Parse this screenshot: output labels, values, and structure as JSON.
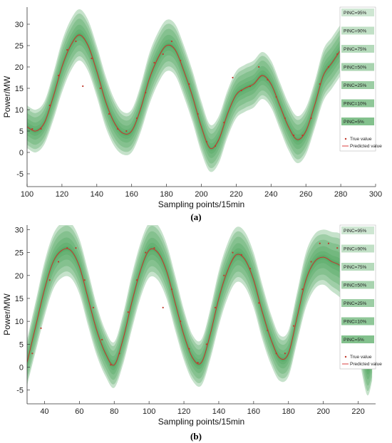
{
  "figure": {
    "colors": {
      "band_fill": "#4ea65c",
      "band_opacity": 0.32,
      "true_value": "#c0392b",
      "predicted": "#d62728",
      "background": "#ffffff"
    },
    "legend_entries": [
      "PINC=95%",
      "PINC=90%",
      "PINC=75%",
      "PINC=50%",
      "PINC=25%",
      "PINC=10%",
      "PINC=5%"
    ],
    "legend_true": "True value",
    "legend_pred": "Predicted value"
  },
  "chart_data": [
    {
      "type": "area",
      "caption": "(a)",
      "xlabel": "Sampling points/15min",
      "ylabel": "Power/MW",
      "xlim": [
        100,
        300
      ],
      "ylim": [
        -8,
        34
      ],
      "xticks": [
        100,
        120,
        140,
        160,
        180,
        200,
        220,
        240,
        260,
        280,
        300
      ],
      "yticks": [
        -5,
        0,
        5,
        10,
        15,
        20,
        25,
        30
      ],
      "grid": false,
      "legend_position": "right",
      "predicted": {
        "name": "Predicted value",
        "x": [
          100,
          105,
          110,
          115,
          120,
          125,
          130,
          135,
          140,
          145,
          150,
          155,
          160,
          165,
          170,
          175,
          180,
          185,
          190,
          195,
          200,
          205,
          210,
          215,
          220,
          225,
          230,
          235,
          240,
          245,
          250,
          255,
          260,
          265,
          270,
          275,
          280,
          285,
          290
        ],
        "y": [
          6,
          5,
          7,
          13,
          20,
          25,
          27.5,
          25,
          19,
          12,
          7,
          4.5,
          5,
          10,
          17,
          22,
          25,
          24,
          19,
          13,
          6,
          1,
          3,
          9,
          13.5,
          15,
          16,
          18,
          16,
          11,
          6,
          3,
          5,
          11,
          18,
          21,
          24,
          27,
          27.5
        ]
      },
      "bands": [
        {
          "name": "PINC=95%",
          "halfwidth": [
            5,
            5,
            5,
            5.5,
            6,
            6,
            6,
            6,
            6,
            6,
            5.5,
            5,
            5,
            5.5,
            6,
            6,
            6,
            6,
            6,
            6,
            6,
            5.5,
            5.5,
            5.5,
            5.5,
            5.5,
            5.5,
            5.5,
            5.5,
            5.5,
            5.5,
            5.5,
            5.5,
            5.5,
            6,
            6,
            6,
            6,
            6
          ]
        },
        {
          "name": "PINC=90%",
          "halfwidth": [
            4.2,
            4.2,
            4.2,
            4.6,
            5,
            5,
            5,
            5,
            5,
            5,
            4.6,
            4.2,
            4.2,
            4.6,
            5,
            5,
            5,
            5,
            5,
            5,
            5,
            4.6,
            4.6,
            4.6,
            4.6,
            4.6,
            4.6,
            4.6,
            4.6,
            4.6,
            4.6,
            4.6,
            4.6,
            4.6,
            5,
            5,
            5,
            5,
            5
          ]
        },
        {
          "name": "PINC=75%",
          "halfwidth": [
            3.2,
            3.2,
            3.2,
            3.5,
            3.8,
            3.8,
            3.8,
            3.8,
            3.8,
            3.8,
            3.5,
            3.2,
            3.2,
            3.5,
            3.8,
            3.8,
            3.8,
            3.8,
            3.8,
            3.8,
            3.8,
            3.5,
            3.5,
            3.5,
            3.5,
            3.5,
            3.5,
            3.5,
            3.5,
            3.5,
            3.5,
            3.5,
            3.5,
            3.5,
            3.8,
            3.8,
            3.8,
            3.8,
            3.8
          ]
        },
        {
          "name": "PINC=50%",
          "halfwidth": [
            2,
            2,
            2,
            2.2,
            2.4,
            2.4,
            2.4,
            2.4,
            2.4,
            2.4,
            2.2,
            2,
            2,
            2.2,
            2.4,
            2.4,
            2.4,
            2.4,
            2.4,
            2.4,
            2.4,
            2.2,
            2.2,
            2.2,
            2.2,
            2.2,
            2.2,
            2.2,
            2.2,
            2.2,
            2.2,
            2.2,
            2.2,
            2.2,
            2.4,
            2.4,
            2.4,
            2.4,
            2.4
          ]
        },
        {
          "name": "PINC=25%",
          "halfwidth": [
            1.1,
            1.1,
            1.1,
            1.2,
            1.3,
            1.3,
            1.3,
            1.3,
            1.3,
            1.3,
            1.2,
            1.1,
            1.1,
            1.2,
            1.3,
            1.3,
            1.3,
            1.3,
            1.3,
            1.3,
            1.3,
            1.2,
            1.2,
            1.2,
            1.2,
            1.2,
            1.2,
            1.2,
            1.2,
            1.2,
            1.2,
            1.2,
            1.2,
            1.2,
            1.3,
            1.3,
            1.3,
            1.3,
            1.3
          ]
        },
        {
          "name": "PINC=10%",
          "halfwidth": [
            0.5,
            0.5,
            0.5,
            0.5,
            0.55,
            0.55,
            0.55,
            0.55,
            0.55,
            0.55,
            0.5,
            0.5,
            0.5,
            0.5,
            0.55,
            0.55,
            0.55,
            0.55,
            0.55,
            0.55,
            0.55,
            0.5,
            0.5,
            0.5,
            0.5,
            0.5,
            0.5,
            0.5,
            0.5,
            0.5,
            0.5,
            0.5,
            0.5,
            0.5,
            0.55,
            0.55,
            0.55,
            0.55,
            0.55
          ]
        },
        {
          "name": "PINC=5%",
          "halfwidth": [
            0.25,
            0.25,
            0.25,
            0.25,
            0.28,
            0.28,
            0.28,
            0.28,
            0.28,
            0.28,
            0.25,
            0.25,
            0.25,
            0.25,
            0.28,
            0.28,
            0.28,
            0.28,
            0.28,
            0.28,
            0.28,
            0.25,
            0.25,
            0.25,
            0.25,
            0.25,
            0.25,
            0.25,
            0.25,
            0.25,
            0.25,
            0.25,
            0.25,
            0.25,
            0.28,
            0.28,
            0.28,
            0.28,
            0.28
          ]
        }
      ],
      "true_value": {
        "name": "True value",
        "x": [
          103,
          108,
          113,
          118,
          123,
          128,
          132,
          137,
          142,
          147,
          152,
          157,
          163,
          168,
          173,
          178,
          183,
          188,
          193,
          198,
          203,
          208,
          213,
          218,
          223,
          228,
          233,
          238,
          243,
          248,
          253,
          258,
          263,
          268,
          273,
          278,
          283
        ],
        "y": [
          5.5,
          5.5,
          11,
          18,
          24,
          26,
          15.5,
          22,
          15,
          9,
          5.5,
          5,
          8,
          14,
          21,
          23,
          26,
          21.5,
          16,
          9,
          2.5,
          1.5,
          7,
          17.5,
          14.5,
          15.5,
          20,
          17,
          13,
          8,
          4,
          4,
          8,
          16,
          20,
          23,
          26
        ]
      }
    },
    {
      "type": "area",
      "caption": "(b)",
      "xlabel": "Sampling points/15min",
      "ylabel": "Power/MW",
      "xlim": [
        30,
        230
      ],
      "ylim": [
        -8,
        31
      ],
      "xticks": [
        40,
        60,
        80,
        100,
        120,
        140,
        160,
        180,
        200,
        220
      ],
      "yticks": [
        -5,
        0,
        5,
        10,
        15,
        20,
        25,
        30
      ],
      "grid": false,
      "legend_position": "right",
      "predicted": {
        "name": "Predicted value",
        "x": [
          30,
          35,
          40,
          45,
          50,
          55,
          60,
          65,
          70,
          75,
          80,
          85,
          90,
          95,
          100,
          105,
          110,
          115,
          120,
          125,
          130,
          135,
          140,
          145,
          150,
          155,
          160,
          165,
          170,
          175,
          180,
          185,
          190,
          195,
          200,
          205,
          210,
          215,
          220,
          225,
          228
        ],
        "y": [
          1,
          9,
          17,
          23,
          25.5,
          25.5,
          22,
          15,
          8,
          3,
          0.5,
          6,
          14,
          21,
          25.5,
          25,
          21,
          14,
          7,
          2,
          1,
          7,
          15,
          21,
          24.5,
          23.5,
          19,
          12,
          6,
          2,
          3,
          11,
          19,
          23,
          24,
          23,
          22,
          19,
          10,
          0,
          2
        ]
      },
      "bands": [
        {
          "name": "PINC=95%",
          "halfwidth": [
            5,
            5.5,
            6,
            6,
            6,
            6,
            6,
            6,
            5.5,
            5,
            5,
            5.5,
            6,
            6,
            6,
            6,
            6,
            6,
            5.5,
            5,
            5,
            5.5,
            6,
            6,
            6,
            6,
            6,
            6,
            5.5,
            5,
            5,
            5.5,
            6,
            6,
            6,
            6.5,
            7,
            7,
            7,
            6,
            5
          ]
        },
        {
          "name": "PINC=90%",
          "halfwidth": [
            4.2,
            4.6,
            5,
            5,
            5,
            5,
            5,
            5,
            4.6,
            4.2,
            4.2,
            4.6,
            5,
            5,
            5,
            5,
            5,
            5,
            4.6,
            4.2,
            4.2,
            4.6,
            5,
            5,
            5,
            5,
            5,
            5,
            4.6,
            4.2,
            4.2,
            4.6,
            5,
            5,
            5,
            5.4,
            5.8,
            5.8,
            5.8,
            5,
            4.2
          ]
        },
        {
          "name": "PINC=75%",
          "halfwidth": [
            3.2,
            3.5,
            3.8,
            3.8,
            3.8,
            3.8,
            3.8,
            3.8,
            3.5,
            3.2,
            3.2,
            3.5,
            3.8,
            3.8,
            3.8,
            3.8,
            3.8,
            3.8,
            3.5,
            3.2,
            3.2,
            3.5,
            3.8,
            3.8,
            3.8,
            3.8,
            3.8,
            3.8,
            3.5,
            3.2,
            3.2,
            3.5,
            3.8,
            3.8,
            3.8,
            4.1,
            4.4,
            4.4,
            4.4,
            3.8,
            3.2
          ]
        },
        {
          "name": "PINC=50%",
          "halfwidth": [
            2,
            2.2,
            2.4,
            2.4,
            2.4,
            2.4,
            2.4,
            2.4,
            2.2,
            2,
            2,
            2.2,
            2.4,
            2.4,
            2.4,
            2.4,
            2.4,
            2.4,
            2.2,
            2,
            2,
            2.2,
            2.4,
            2.4,
            2.4,
            2.4,
            2.4,
            2.4,
            2.2,
            2,
            2,
            2.2,
            2.4,
            2.4,
            2.4,
            2.6,
            2.8,
            2.8,
            2.8,
            2.4,
            2
          ]
        },
        {
          "name": "PINC=25%",
          "halfwidth": [
            1.1,
            1.2,
            1.3,
            1.3,
            1.3,
            1.3,
            1.3,
            1.3,
            1.2,
            1.1,
            1.1,
            1.2,
            1.3,
            1.3,
            1.3,
            1.3,
            1.3,
            1.3,
            1.2,
            1.1,
            1.1,
            1.2,
            1.3,
            1.3,
            1.3,
            1.3,
            1.3,
            1.3,
            1.2,
            1.1,
            1.1,
            1.2,
            1.3,
            1.3,
            1.3,
            1.4,
            1.5,
            1.5,
            1.5,
            1.3,
            1.1
          ]
        },
        {
          "name": "PINC=10%",
          "halfwidth": [
            0.5,
            0.5,
            0.55,
            0.55,
            0.55,
            0.55,
            0.55,
            0.55,
            0.5,
            0.5,
            0.5,
            0.5,
            0.55,
            0.55,
            0.55,
            0.55,
            0.55,
            0.55,
            0.5,
            0.5,
            0.5,
            0.5,
            0.55,
            0.55,
            0.55,
            0.55,
            0.55,
            0.55,
            0.5,
            0.5,
            0.5,
            0.5,
            0.55,
            0.55,
            0.55,
            0.6,
            0.6,
            0.6,
            0.6,
            0.55,
            0.5
          ]
        },
        {
          "name": "PINC=5%",
          "halfwidth": [
            0.25,
            0.25,
            0.28,
            0.28,
            0.28,
            0.28,
            0.28,
            0.28,
            0.25,
            0.25,
            0.25,
            0.25,
            0.28,
            0.28,
            0.28,
            0.28,
            0.28,
            0.28,
            0.25,
            0.25,
            0.25,
            0.25,
            0.28,
            0.28,
            0.28,
            0.28,
            0.28,
            0.28,
            0.25,
            0.25,
            0.25,
            0.25,
            0.28,
            0.28,
            0.28,
            0.3,
            0.3,
            0.3,
            0.3,
            0.28,
            0.25
          ]
        }
      ],
      "true_value": {
        "name": "True value",
        "x": [
          33,
          38,
          43,
          48,
          53,
          58,
          63,
          68,
          73,
          78,
          83,
          88,
          93,
          98,
          103,
          108,
          113,
          118,
          123,
          128,
          133,
          138,
          143,
          148,
          153,
          158,
          163,
          168,
          173,
          178,
          183,
          188,
          193,
          198,
          203,
          208,
          213,
          218
        ],
        "y": [
          3,
          8.5,
          19,
          23,
          26,
          26,
          19,
          13,
          6,
          0.5,
          3,
          12,
          19,
          25,
          26,
          13,
          17,
          10,
          4,
          1,
          5,
          13,
          20,
          25,
          24.5,
          21.5,
          14,
          8,
          3,
          3,
          9,
          17,
          23,
          27,
          27,
          26,
          24,
          21
        ]
      }
    }
  ]
}
